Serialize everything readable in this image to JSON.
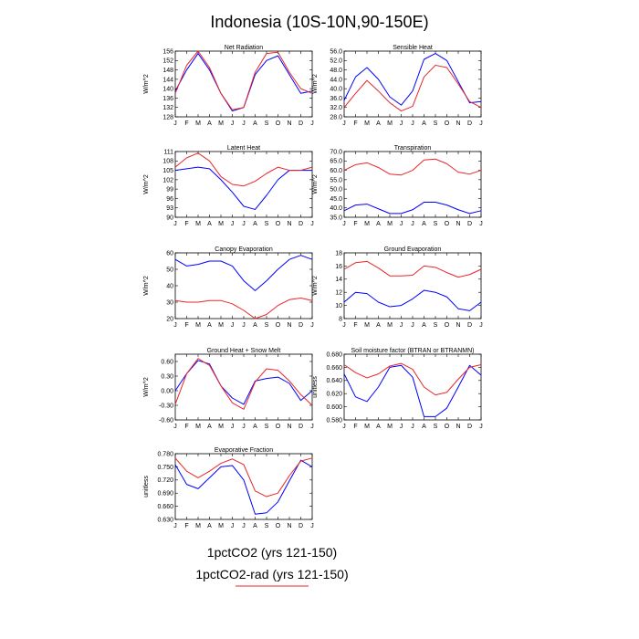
{
  "figure": {
    "title": "Indonesia (10S-10N,90-150E)",
    "legend": [
      {
        "label": "1pctCO2 (yrs 121-150)",
        "color": "#0000ff"
      },
      {
        "label": "1pctCO2-rad (yrs 121-150)",
        "color": "#ff0000"
      }
    ]
  },
  "colors": {
    "series_a": "#0000ff",
    "series_b": "#e8262a",
    "frame": "#000000"
  },
  "chart_data": [
    {
      "type": "line",
      "title": "Net Radiation",
      "ylabel": "W/m^2",
      "x": [
        "J",
        "F",
        "M",
        "A",
        "M",
        "J",
        "J",
        "A",
        "S",
        "O",
        "N",
        "D",
        "J"
      ],
      "ylim": [
        128,
        156
      ],
      "yticks": [
        128,
        132,
        136,
        140,
        144,
        148,
        152,
        156
      ],
      "ytick_labels": [
        "128",
        "132",
        "136",
        "140",
        "144",
        "148",
        "152",
        "156"
      ],
      "series": [
        {
          "name": "1pctCO2 (yrs 121-150)",
          "values": [
            139,
            148,
            155,
            148,
            138,
            130.5,
            132,
            146,
            152,
            154,
            146,
            138,
            139
          ]
        },
        {
          "name": "1pctCO2-rad (yrs 121-150)",
          "values": [
            138,
            150,
            156,
            149,
            138,
            131,
            132,
            147,
            155,
            155.5,
            147,
            140,
            138
          ]
        }
      ]
    },
    {
      "type": "line",
      "title": "Sensible Heat",
      "ylabel": "W/m^2",
      "x": [
        "J",
        "F",
        "M",
        "A",
        "M",
        "J",
        "J",
        "A",
        "S",
        "O",
        "N",
        "D",
        "J"
      ],
      "ylim": [
        28,
        56
      ],
      "yticks": [
        28,
        32,
        36,
        40,
        44,
        48,
        52,
        56
      ],
      "ytick_labels": [
        "28.0",
        "32.0",
        "36.0",
        "40.0",
        "44.0",
        "48.0",
        "52.0",
        "56.0"
      ],
      "series": [
        {
          "name": "1pctCO2 (yrs 121-150)",
          "values": [
            35,
            45,
            49,
            44,
            36.5,
            33,
            39,
            52.5,
            55,
            52,
            43,
            34,
            34.5
          ]
        },
        {
          "name": "1pctCO2-rad (yrs 121-150)",
          "values": [
            32,
            38,
            43.5,
            39,
            34,
            30.5,
            32.5,
            45,
            50,
            49,
            42,
            34.5,
            32
          ]
        }
      ]
    },
    {
      "type": "line",
      "title": "Latent Heat",
      "ylabel": "W/m^2",
      "x": [
        "J",
        "F",
        "M",
        "A",
        "M",
        "J",
        "J",
        "A",
        "S",
        "O",
        "N",
        "D",
        "J"
      ],
      "ylim": [
        90,
        111
      ],
      "yticks": [
        90,
        93,
        96,
        99,
        102,
        105,
        108,
        111
      ],
      "ytick_labels": [
        "90",
        "93",
        "96",
        "99",
        "102",
        "105",
        "108",
        "111"
      ],
      "series": [
        {
          "name": "1pctCO2 (yrs 121-150)",
          "values": [
            105,
            105.5,
            106,
            105.5,
            102,
            98,
            93.5,
            92.5,
            97,
            102,
            105,
            105,
            105
          ]
        },
        {
          "name": "1pctCO2-rad (yrs 121-150)",
          "values": [
            106,
            109,
            110.5,
            108,
            103,
            100.5,
            100,
            101.5,
            104,
            106,
            105,
            105,
            106
          ]
        }
      ]
    },
    {
      "type": "line",
      "title": "Transpiration",
      "ylabel": "W/m^2",
      "x": [
        "J",
        "F",
        "M",
        "A",
        "M",
        "J",
        "J",
        "A",
        "S",
        "O",
        "N",
        "D",
        "J"
      ],
      "ylim": [
        35,
        70
      ],
      "yticks": [
        35,
        40,
        45,
        50,
        55,
        60,
        65,
        70
      ],
      "ytick_labels": [
        "35.0",
        "40.0",
        "45.0",
        "50.0",
        "55.0",
        "60.0",
        "65.0",
        "70.0"
      ],
      "series": [
        {
          "name": "1pctCO2 (yrs 121-150)",
          "values": [
            38.5,
            41.5,
            42,
            39.5,
            37,
            37,
            39,
            43,
            43,
            41.5,
            39,
            37,
            38.5
          ]
        },
        {
          "name": "1pctCO2-rad (yrs 121-150)",
          "values": [
            60,
            63,
            64,
            61.5,
            58,
            57.5,
            60,
            65.5,
            66,
            63.5,
            59,
            58,
            60
          ]
        }
      ]
    },
    {
      "type": "line",
      "title": "Canopy Evaporation",
      "ylabel": "W/m^2",
      "x": [
        "J",
        "F",
        "M",
        "A",
        "M",
        "J",
        "J",
        "A",
        "S",
        "O",
        "N",
        "D",
        "J"
      ],
      "ylim": [
        20,
        60
      ],
      "yticks": [
        20,
        30,
        40,
        50,
        60
      ],
      "ytick_labels": [
        "20",
        "30",
        "40",
        "50",
        "60"
      ],
      "series": [
        {
          "name": "1pctCO2 (yrs 121-150)",
          "values": [
            56,
            52,
            53,
            55,
            55,
            52,
            43,
            37,
            43,
            50,
            56,
            58.5,
            56
          ]
        },
        {
          "name": "1pctCO2-rad (yrs 121-150)",
          "values": [
            31,
            30,
            30,
            31,
            31,
            29,
            25,
            20,
            22.5,
            28,
            31.5,
            32.5,
            31
          ]
        }
      ]
    },
    {
      "type": "line",
      "title": "Ground Evaporation",
      "ylabel": "W/m^2",
      "x": [
        "J",
        "F",
        "M",
        "A",
        "M",
        "J",
        "J",
        "A",
        "S",
        "O",
        "N",
        "D",
        "J"
      ],
      "ylim": [
        8,
        18
      ],
      "yticks": [
        8,
        10,
        12,
        14,
        16,
        18
      ],
      "ytick_labels": [
        "8",
        "10",
        "12",
        "14",
        "16",
        "18"
      ],
      "series": [
        {
          "name": "1pctCO2 (yrs 121-150)",
          "values": [
            10.5,
            12,
            11.8,
            10.5,
            9.8,
            10,
            11,
            12.3,
            12,
            11.3,
            9.5,
            9.2,
            10.5
          ]
        },
        {
          "name": "1pctCO2-rad (yrs 121-150)",
          "values": [
            15.5,
            16.5,
            16.7,
            15.7,
            14.5,
            14.5,
            14.6,
            16,
            15.8,
            15,
            14.3,
            14.7,
            15.5
          ]
        }
      ]
    },
    {
      "type": "line",
      "title": "Ground Heat + Snow Melt",
      "ylabel": "W/m^2",
      "x": [
        "J",
        "F",
        "M",
        "A",
        "M",
        "J",
        "J",
        "A",
        "S",
        "O",
        "N",
        "D",
        "J"
      ],
      "ylim": [
        -0.6,
        0.75
      ],
      "yticks": [
        -0.6,
        -0.3,
        0,
        0.3,
        0.6
      ],
      "ytick_labels": [
        "-0.60",
        "-0.30",
        "0.00",
        "0.30",
        "0.60"
      ],
      "series": [
        {
          "name": "1pctCO2 (yrs 121-150)",
          "values": [
            0.0,
            0.35,
            0.62,
            0.55,
            0.1,
            -0.15,
            -0.28,
            0.2,
            0.25,
            0.28,
            0.15,
            -0.2,
            0.0
          ]
        },
        {
          "name": "1pctCO2-rad (yrs 121-150)",
          "values": [
            -0.28,
            0.35,
            0.66,
            0.52,
            0.1,
            -0.25,
            -0.38,
            0.18,
            0.45,
            0.42,
            0.2,
            -0.08,
            -0.3
          ]
        }
      ]
    },
    {
      "type": "line",
      "title": "Soil moisture factor (BTRAN or BTRANMN)",
      "ylabel": "unitless",
      "x": [
        "J",
        "F",
        "M",
        "A",
        "M",
        "J",
        "J",
        "A",
        "S",
        "O",
        "N",
        "D",
        "J"
      ],
      "ylim": [
        0.58,
        0.68
      ],
      "yticks": [
        0.58,
        0.6,
        0.62,
        0.64,
        0.66,
        0.68
      ],
      "ytick_labels": [
        "0.580",
        "0.600",
        "0.620",
        "0.640",
        "0.660",
        "0.680"
      ],
      "series": [
        {
          "name": "1pctCO2 (yrs 121-150)",
          "values": [
            0.65,
            0.615,
            0.608,
            0.63,
            0.66,
            0.663,
            0.645,
            0.585,
            0.585,
            0.598,
            0.63,
            0.663,
            0.648
          ]
        },
        {
          "name": "1pctCO2-rad (yrs 121-150)",
          "values": [
            0.664,
            0.652,
            0.644,
            0.65,
            0.662,
            0.666,
            0.657,
            0.63,
            0.618,
            0.622,
            0.642,
            0.66,
            0.664
          ]
        }
      ]
    },
    {
      "type": "line",
      "title": "Evaporative Fraction",
      "ylabel": "unitless",
      "x": [
        "J",
        "F",
        "M",
        "A",
        "M",
        "J",
        "J",
        "A",
        "S",
        "O",
        "N",
        "D",
        "J"
      ],
      "ylim": [
        0.63,
        0.78
      ],
      "yticks": [
        0.63,
        0.66,
        0.69,
        0.72,
        0.75,
        0.78
      ],
      "ytick_labels": [
        "0.630",
        "0.660",
        "0.690",
        "0.720",
        "0.750",
        "0.780"
      ],
      "series": [
        {
          "name": "1pctCO2 (yrs 121-150)",
          "values": [
            0.755,
            0.71,
            0.7,
            0.725,
            0.75,
            0.753,
            0.72,
            0.642,
            0.645,
            0.67,
            0.718,
            0.765,
            0.75
          ]
        },
        {
          "name": "1pctCO2-rad (yrs 121-150)",
          "values": [
            0.77,
            0.74,
            0.725,
            0.74,
            0.758,
            0.768,
            0.755,
            0.695,
            0.682,
            0.69,
            0.73,
            0.763,
            0.77
          ]
        }
      ]
    }
  ]
}
